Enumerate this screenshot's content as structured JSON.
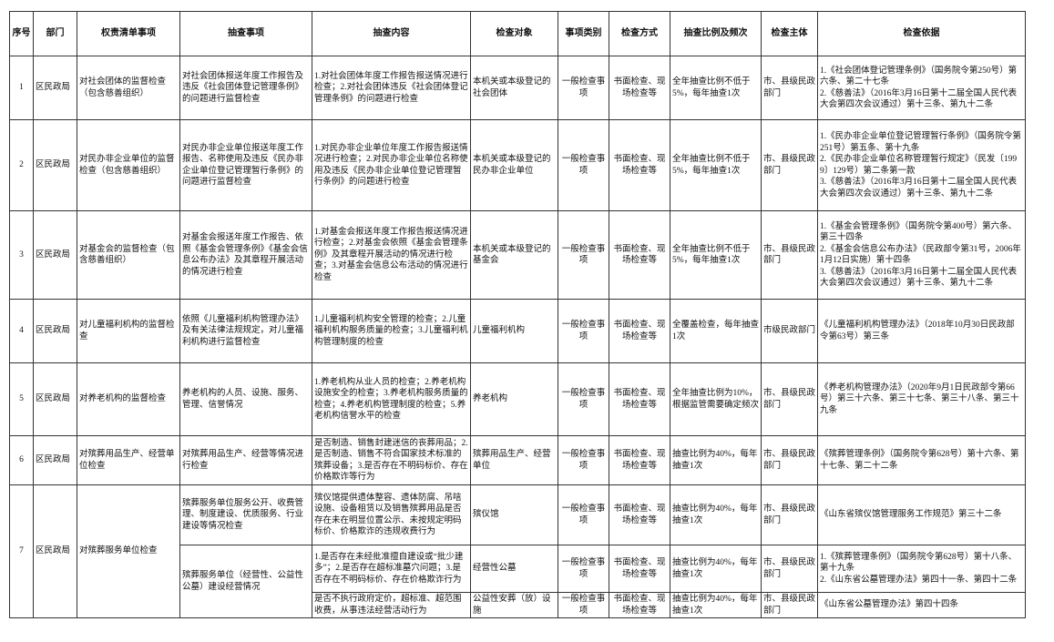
{
  "header": [
    "序号",
    "部门",
    "权责清单事项",
    "抽查事项",
    "抽查内容",
    "检查对象",
    "事项类别",
    "检查方式",
    "抽查比例及频次",
    "检查主体",
    "检查依据"
  ],
  "rows": [
    {
      "no": "1",
      "dept": "区民政局",
      "item": "对社会团体的监督检查（包含慈善组织）",
      "checks": [
        {
          "matter": "对社会团体报送年度工作报告及违反《社会团体登记管理条例》的问题进行监督检查",
          "content": "1.对社会团体年度工作报告报送情况进行检查；2.对社会团体违反《社会团体登记管理条例》的问题进行检查",
          "target": "本机关或本级登记的社会团体",
          "category": "一般检查事项",
          "method": "书面检查、现场检查等",
          "ratio": "全年抽查比例不低于5%，每年抽查1次",
          "subject": "市、县级民政部门",
          "basis": [
            "1.《社会团体登记管理条例》（国务院令第250号）第六条、第二十七条",
            "2.《慈善法》（2016年3月16日第十二届全国人民代表大会第四次会议通过）第十三条、第九十二条"
          ]
        }
      ]
    },
    {
      "no": "2",
      "dept": "区民政局",
      "item": "对民办非企业单位的监督检查（包含慈善组织）",
      "checks": [
        {
          "matter": "对民办非企业单位报送年度工作报告、名称使用及违反《民办非企业单位登记管理暂行条例》的问题进行监督检查",
          "content": "1.对民办非企业单位年度工作报告报送情况进行检查；2.对民办非企业单位名称使用及违反《民办非企业单位登记管理暂行条例》的问题进行检查",
          "target": "本机关或本级登记的民办非企业单位",
          "category": "一般检查事项",
          "method": "书面检查、现场检查等",
          "ratio": "全年抽查比例不低于5%，每年抽查1次",
          "subject": "市、县级民政部门",
          "basis": [
            "1.《民办非企业单位登记管理暂行条例》（国务院令第251号）第五条、第十九条",
            "2.《民办非企业单位名称管理暂行规定》（民发〔1999〕129号）第二条第一款",
            "3.《慈善法》（2016年3月16日第十二届全国人民代表大会第四次会议通过）第十三条、第九十二条"
          ]
        }
      ]
    },
    {
      "no": "3",
      "dept": "区民政局",
      "item": "对基金会的监督检查（包含慈善组织）",
      "checks": [
        {
          "matter": "对基金会报送年度工作报告、依照《基金会管理条例》《基金会信息公布办法》及其章程开展活动的情况进行检查",
          "content": "1.对基金会报送年度工作报告报送情况进行检查；2.对基金会依照《基金会管理条例》及其章程开展活动的情况进行检查；3.对基金会信息公布活动的情况进行检查",
          "target": "本机关或本级登记的基金会",
          "category": "一般检查事项",
          "method": "书面检查、现场检查等",
          "ratio": "全年抽查比例不低于5%，每年抽查1次",
          "subject": "市、县级民政部门",
          "basis": [
            "1.《基金会管理条例》（国务院令第400号）第六条、第三十四条",
            "2.《基金会信息公布办法》（民政部令第31号，2006年1月12日实施）第十四条",
            "3.《慈善法》（2016年3月16日第十二届全国人民代表大会第四次会议通过）第十三条、第九十二条"
          ]
        }
      ]
    },
    {
      "no": "4",
      "dept": "区民政局",
      "item": "对儿童福利机构的监督检查",
      "checks": [
        {
          "matter": "依照《儿童福利机构管理办法》及有关法律法规规定，对儿童福利机构进行监督检查",
          "content": "1.儿童福利机构安全管理的检查；2.儿童福利机构服务质量的检查；3.儿童福利机构管理制度的检查",
          "target": "儿童福利机构",
          "category": "一般检查事项",
          "method": "书面检查、现场检查等",
          "ratio": "全覆盖检查，每年抽查1次",
          "subject": "市级民政部门",
          "basis": [
            "《儿童福利机构管理办法》（2018年10月30日民政部令第63号）第三条"
          ]
        }
      ]
    },
    {
      "no": "5",
      "dept": "区民政局",
      "item": "对养老机构的监督检查",
      "checks": [
        {
          "matter": "养老机构的人员、设施、服务、管理、信誉情况",
          "content": "1.养老机构从业人员的检查；2.养老机构设施安全的检查；3.养老机构服务质量的检查；4.养老机构管理制度的检查；5.养老机构信誉水平的检查",
          "target": "养老机构",
          "category": "一般检查事项",
          "method": "书面检查、现场检查等",
          "ratio": "全年抽查比例为10%，根据监管需要确定频次",
          "subject": "市、县级民政部门",
          "basis": [
            "《养老机构管理办法》（2020年9月1日民政部令第66号）第三十六条、第三十七条、第三十八条、第三十九条"
          ]
        }
      ]
    },
    {
      "no": "6",
      "dept": "区民政局",
      "item": "对殡葬用品生产、经营单位检查",
      "checks": [
        {
          "matter": "对殡葬用品生产、经营等情况进行检查",
          "content": "是否制造、销售封建迷信的丧葬用品；2.是否制造、销售不符合国家技术标准的殡葬设备；3.是否存在不明码标价、存在价格欺诈等行为",
          "target": "殡葬用品生产、经营单位",
          "category": "一般检查事项",
          "method": "书面检查、现场检查等",
          "ratio": "抽查比例为40%，每年抽查1次",
          "subject": "市、县级民政部门",
          "basis": [
            "《殡葬管理条例》（国务院令第628号）第十六条、第十七条、第二十二条"
          ]
        }
      ]
    },
    {
      "no": "7",
      "dept": "区民政局",
      "item": "对殡葬服务单位检查",
      "checks": [
        {
          "matter": "殡葬服务单位服务公开、收费管理、制度建设、优质服务、行业建设等情况检查",
          "content": "殡仪馆提供遗体整容、遗体防腐、吊唁设施、设备租赁以及销售殡葬用品是否存在未在明显位置公示、未按规定明码标价、价格欺诈的违规收费行为",
          "target": "殡仪馆",
          "category": "一般检查事项",
          "method": "书面检查、现场检查等",
          "ratio": "抽查比例为40%，每年抽查1次",
          "subject": "市、县级民政部门",
          "basis": [
            "《山东省殡仪馆管理服务工作规范》第三十二条"
          ]
        },
        {
          "matter": "殡葬服务单位（经营性、公益性公墓）建设经营情况",
          "content": "1.是否存在未经批准擅自建设或“批少建多”；2.是否存在超标准墓穴问题；3.是否存在不明码标价、存在价格欺诈行为",
          "target": "经营性公墓",
          "category": "一般检查事项",
          "method": "书面检查、现场检查等",
          "ratio": "抽查比例为40%，每年抽查1次",
          "subject": "市、县级民政部门",
          "basis": [
            "1.《殡葬管理条例》（国务院令第628号）第十八条、第十九条",
            "2.《山东省公墓管理办法》第四十一条、第四十二条"
          ]
        },
        {
          "content": "是否不执行政府定价，超标准、超范围收费，从事违法经营活动行为",
          "target": "公益性安葬（放）设施",
          "category": "一般检查事项",
          "method": "书面检查、现场检查等",
          "ratio": "抽查比例为40%，每年抽查1次",
          "subject": "市、县级民政部门",
          "basis": [
            "《山东省公墓管理办法》第四十四条"
          ]
        }
      ]
    }
  ]
}
